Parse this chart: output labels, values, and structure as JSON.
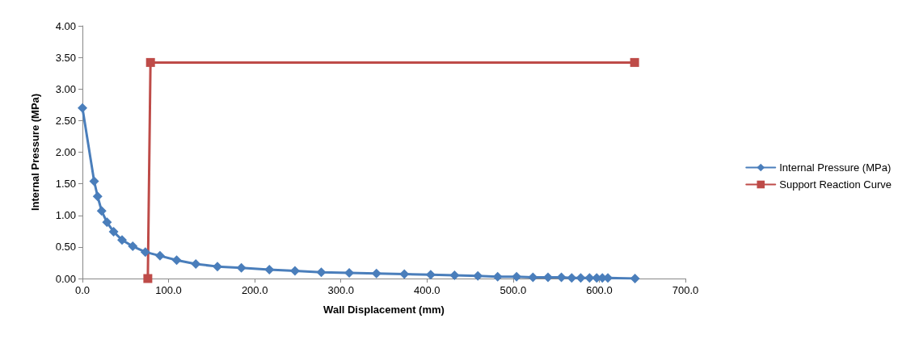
{
  "chart_data": {
    "type": "line",
    "xlabel": "Wall Displacement (mm)",
    "ylabel": "Internal Pressure (MPa)",
    "xlim": [
      0,
      700
    ],
    "xticks": [
      {
        "value": 0,
        "label": "0.0"
      },
      {
        "value": 100,
        "label": "100.0"
      },
      {
        "value": 200,
        "label": "200.0"
      },
      {
        "value": 300,
        "label": "300.0"
      },
      {
        "value": 400,
        "label": "400.0"
      },
      {
        "value": 500,
        "label": "500.0"
      },
      {
        "value": 600,
        "label": "600.0"
      },
      {
        "value": 700,
        "label": "700.0"
      }
    ],
    "ylim": [
      0,
      4
    ],
    "yticks": [
      {
        "value": 0,
        "label": "0.00"
      },
      {
        "value": 0.5,
        "label": "0.50"
      },
      {
        "value": 1,
        "label": "1.00"
      },
      {
        "value": 1.5,
        "label": "1.50"
      },
      {
        "value": 2,
        "label": "2.00"
      },
      {
        "value": 2.5,
        "label": "2.50"
      },
      {
        "value": 3,
        "label": "3.00"
      },
      {
        "value": 3.5,
        "label": "3.50"
      },
      {
        "value": 4,
        "label": "4.00"
      }
    ],
    "grid": false,
    "legend": "right",
    "series": [
      {
        "name": "Internal Pressure (MPa)",
        "color": "#4a7ebb",
        "marker": "diamond",
        "x": [
          0,
          13.6,
          17.6,
          22.3,
          28.5,
          36.2,
          46,
          58.4,
          73,
          90,
          109.4,
          131.6,
          156.7,
          184.5,
          217,
          246.7,
          277.3,
          309.7,
          341.3,
          373.7,
          404.3,
          432,
          459,
          482,
          504,
          523,
          540.5,
          556,
          568,
          578.5,
          588.7,
          597,
          603.6,
          610,
          641.5
        ],
        "values": [
          2.7,
          1.54,
          1.3,
          1.07,
          0.89,
          0.74,
          0.61,
          0.51,
          0.42,
          0.36,
          0.29,
          0.23,
          0.19,
          0.17,
          0.14,
          0.12,
          0.1,
          0.09,
          0.08,
          0.07,
          0.06,
          0.05,
          0.04,
          0.03,
          0.03,
          0.02,
          0.02,
          0.02,
          0.01,
          0.01,
          0.01,
          0.01,
          0.01,
          0.01,
          0
        ]
      },
      {
        "name": "Support Reaction Curve",
        "color": "#be4b48",
        "marker": "square",
        "x": [
          75.9,
          79,
          641
        ],
        "values": [
          0,
          3.42,
          3.42
        ]
      }
    ]
  }
}
